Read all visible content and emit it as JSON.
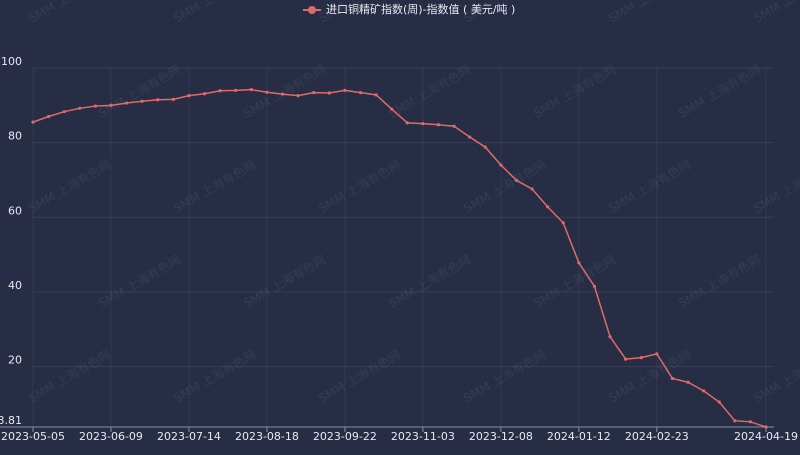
{
  "chart_data": {
    "type": "line",
    "legend": "进口铜精矿指数(周)-指数值 ( 美元/吨 )",
    "watermark": "SMM 上海有色网",
    "categories": [
      "2023-05-05",
      null,
      null,
      null,
      null,
      "2023-06-09",
      null,
      null,
      null,
      null,
      "2023-07-14",
      null,
      null,
      null,
      null,
      "2023-08-18",
      null,
      null,
      null,
      null,
      "2023-09-22",
      null,
      null,
      null,
      null,
      "2023-11-03",
      null,
      null,
      null,
      null,
      "2023-12-08",
      null,
      null,
      null,
      null,
      "2024-01-12",
      null,
      null,
      null,
      null,
      "2024-02-23",
      null,
      null,
      null,
      null,
      null,
      null,
      "2024-04-19"
    ],
    "series": [
      {
        "name": "进口铜精矿指数(周)-指数值 ( 美元/吨 )",
        "color": "#e06a6a",
        "values": [
          85.5,
          87,
          88.3,
          89.2,
          89.8,
          90,
          90.6,
          91.1,
          91.5,
          91.6,
          92.6,
          93.1,
          93.9,
          94,
          94.2,
          93.5,
          93,
          92.6,
          93.4,
          93.3,
          94,
          93.4,
          92.8,
          89,
          85.3,
          85.1,
          84.8,
          84.4,
          81.5,
          78.8,
          74,
          69.9,
          67.6,
          62.8,
          58.5,
          47.8,
          41.5,
          28,
          22,
          22.4,
          23.4,
          16.8,
          15.8,
          13.5,
          10.5,
          5.5,
          5.2,
          3.81
        ]
      }
    ],
    "ylim": [
      3.81,
      100
    ],
    "yticks": [
      3.81,
      20,
      40,
      60,
      80,
      100
    ],
    "grid": true
  }
}
